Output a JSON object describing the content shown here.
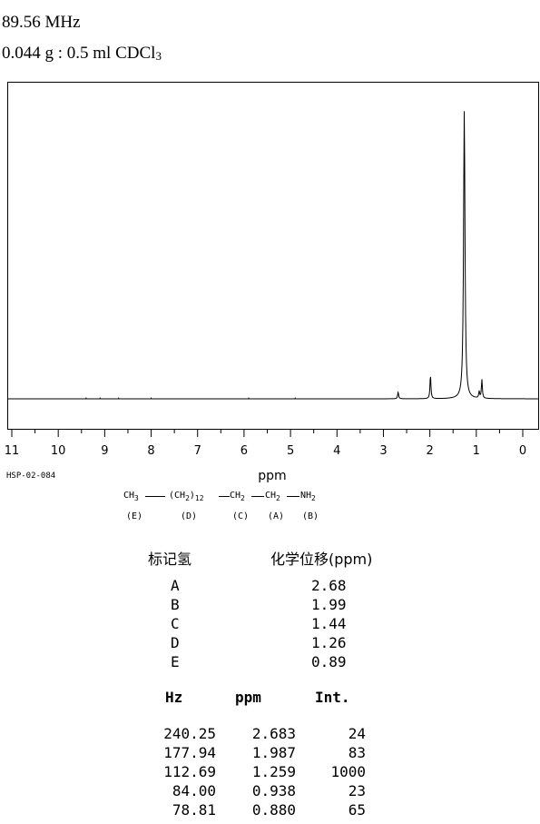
{
  "header": {
    "frequency": "89.56 MHz",
    "sample": "0.044 g : 0.5 ml CDCl",
    "sample_subscript": "3"
  },
  "chart_data": {
    "type": "line",
    "xlabel": "ppm",
    "xlim": [
      11,
      0
    ],
    "x_ticks": [
      "11",
      "10",
      "9",
      "8",
      "7",
      "6",
      "5",
      "4",
      "3",
      "2",
      "1",
      "0"
    ],
    "x_reversed": true,
    "grid": false,
    "peaks": [
      {
        "ppm": 2.683,
        "intensity": 24
      },
      {
        "ppm": 1.987,
        "intensity": 83
      },
      {
        "ppm": 1.259,
        "intensity": 1000
      },
      {
        "ppm": 0.938,
        "intensity": 23
      },
      {
        "ppm": 0.88,
        "intensity": 65
      }
    ]
  },
  "spectrum_code": "HSP-02-084",
  "structure": {
    "groups": [
      "CH",
      "(CH",
      ")",
      "12",
      "CH",
      "CH",
      "NH"
    ],
    "subscripts": [
      "3",
      "2",
      "2",
      "2",
      "2"
    ],
    "letters": [
      "(E)",
      "(D)",
      "(C)",
      "(A)",
      "(B)"
    ]
  },
  "assignment_table": {
    "headers": [
      "标记氢",
      "化学位移(ppm)"
    ],
    "rows": [
      {
        "label": "A",
        "shift": "2.68"
      },
      {
        "label": "B",
        "shift": "1.99"
      },
      {
        "label": "C",
        "shift": "1.44"
      },
      {
        "label": "D",
        "shift": "1.26"
      },
      {
        "label": "E",
        "shift": "0.89"
      }
    ]
  },
  "peak_table": {
    "headers": [
      "Hz",
      "ppm",
      "Int."
    ],
    "rows": [
      {
        "hz": "240.25",
        "ppm": "2.683",
        "int": "24"
      },
      {
        "hz": "177.94",
        "ppm": "1.987",
        "int": "83"
      },
      {
        "hz": "112.69",
        "ppm": "1.259",
        "int": "1000"
      },
      {
        "hz": "84.00",
        "ppm": "0.938",
        "int": "23"
      },
      {
        "hz": "78.81",
        "ppm": "0.880",
        "int": "65"
      }
    ]
  }
}
